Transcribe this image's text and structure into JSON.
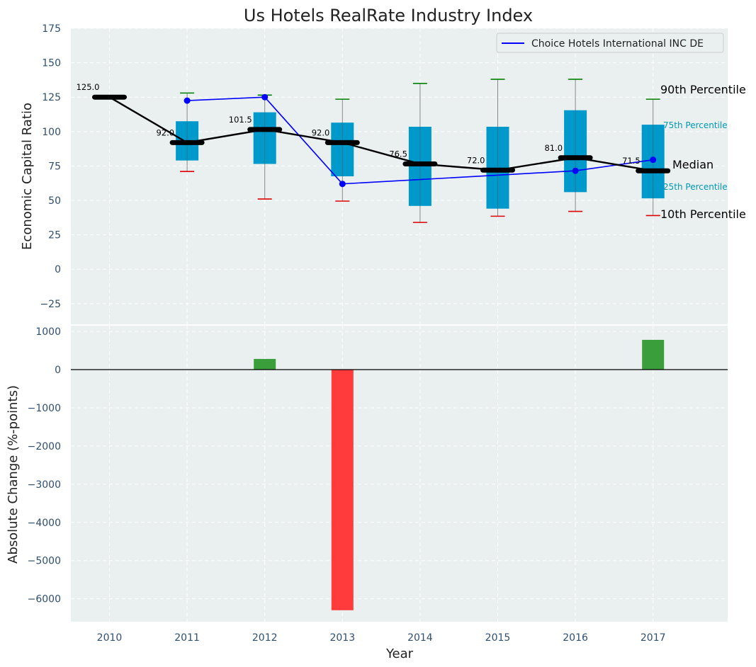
{
  "chart_data": [
    {
      "type": "box",
      "title": "Us Hotels RealRate Industry Index",
      "xlabel": "",
      "ylabel": "Economic Capital Ratio",
      "ylim": [
        -40,
        175
      ],
      "yticks": [
        -25,
        0,
        25,
        50,
        75,
        100,
        125,
        150,
        175
      ],
      "ytick_labels": [
        "−25",
        "0",
        "25",
        "50",
        "75",
        "100",
        "125",
        "150",
        "175"
      ],
      "grid": true,
      "categories": [
        "2010",
        "2011",
        "2012",
        "2013",
        "2014",
        "2015",
        "2016",
        "2017"
      ],
      "p10": [
        125,
        71,
        51,
        49.5,
        34,
        38.5,
        42,
        39
      ],
      "p25": [
        125,
        79,
        76.5,
        67.5,
        46,
        44,
        56,
        51.5
      ],
      "median": [
        125,
        92,
        101.5,
        92,
        76.5,
        72,
        81,
        71.5
      ],
      "p75": [
        125,
        107.5,
        114,
        106.5,
        103.5,
        103.5,
        115.5,
        105
      ],
      "p90": [
        125,
        128,
        126.5,
        123.5,
        135,
        138,
        138,
        123.5
      ],
      "median_labels": [
        "125.0",
        "92.0",
        "101.5",
        "92.0",
        "76.5",
        "72.0",
        "81.0",
        "71.5"
      ],
      "series": [
        {
          "name": "Choice Hotels International INC DE",
          "values": [
            null,
            122.5,
            125,
            62,
            null,
            null,
            71.5,
            79.5
          ]
        }
      ],
      "legend": "top-right",
      "annotations": {
        "p90": "90th Percentile",
        "p75": "75th Percentile",
        "median": "Median",
        "p25": "25th Percentile",
        "p10": "10th Percentile"
      }
    },
    {
      "type": "bar",
      "xlabel": "Year",
      "ylabel": "Absolute Change (%-points)",
      "ylim": [
        -6600,
        1150
      ],
      "yticks": [
        -6000,
        -5000,
        -4000,
        -3000,
        -2000,
        -1000,
        0,
        1000
      ],
      "ytick_labels": [
        "−6000",
        "−5000",
        "−4000",
        "−3000",
        "−2000",
        "−1000",
        "0",
        "1000"
      ],
      "grid": true,
      "categories": [
        "2010",
        "2011",
        "2012",
        "2013",
        "2014",
        "2015",
        "2016",
        "2017"
      ],
      "values": [
        null,
        null,
        280,
        -6300,
        null,
        null,
        null,
        780
      ],
      "positive_color": "#3a9e3a",
      "negative_color": "#ff3b3b"
    }
  ],
  "colors": {
    "plot_bg": "#eaeff0",
    "box": "#0099cc",
    "median": "#000000",
    "company": "#0000ff",
    "whisker_top": "#008000",
    "whisker_bottom": "#dd0000",
    "pct75_text": "#0099bb"
  }
}
